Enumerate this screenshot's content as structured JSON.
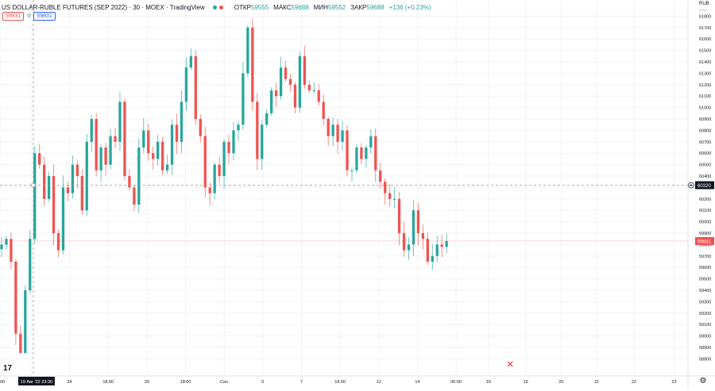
{
  "header": {
    "symbol_line": "US DOLLAR-RUBLE FUTURES (SEP 2022) · 30 · MOEX · TradingView",
    "ohlc": [
      {
        "k": "ОТКР",
        "v": "59555"
      },
      {
        "k": "МАКС",
        "v": "59688"
      },
      {
        "k": "МИН",
        "v": "59552"
      },
      {
        "k": "ЗАКР",
        "v": "59688"
      }
    ],
    "change": "+136 (+0.23%)",
    "badge_left": "59831",
    "badge_zero": "0",
    "badge_right": "59831"
  },
  "axis": {
    "currency": "RUB",
    "currency_sub": "Д/БЫ",
    "crosshair_price": "60320",
    "last_price": "59831",
    "crosshair_time": "19 Авг '22  23:30",
    "close_marker": "✕"
  },
  "colors": {
    "up": "#26a69a",
    "down": "#ef5350",
    "grid": "#f0f3fa",
    "text": "#131722",
    "muted": "#787b86",
    "last_price": "#ef5350",
    "crosshair_label": "#131722"
  },
  "icons": {
    "logo": "tradingview-logo-icon",
    "settings": "gear-icon",
    "close": "close-x-icon",
    "crosshair_add": "plus-circle-icon"
  },
  "chart_data": {
    "type": "candlestick",
    "title": "US DOLLAR-RUBLE FUTURES (SEP 2022)",
    "interval": "30",
    "exchange": "MOEX",
    "currency": "RUB",
    "ylim": [
      58700,
      61900
    ],
    "y_ticks": [
      61800,
      61700,
      61600,
      61500,
      61400,
      61300,
      61200,
      61100,
      61000,
      60900,
      60800,
      60700,
      60600,
      60500,
      60400,
      60300,
      60200,
      60100,
      60000,
      59900,
      59800,
      59700,
      59600,
      59500,
      59400,
      59300,
      59200,
      59100,
      59000,
      58900,
      58800
    ],
    "x_ticks": [
      "00",
      "19 Авг '22",
      "24",
      "18:00",
      "29",
      "18:00",
      "Сен",
      "5",
      "7",
      "18:00",
      "12",
      "14",
      "06:00",
      "16",
      "19",
      "20",
      "21",
      "22",
      "23"
    ],
    "x_tick_positions": [
      0,
      2,
      4.5,
      7,
      9.5,
      12,
      14.5,
      17,
      19.5,
      22,
      24.5,
      27,
      29.5,
      31.6,
      34,
      36.3,
      38.6,
      41,
      43.6
    ],
    "x_max": 44.5,
    "last_bar_index": 29.4,
    "close": [
      59800,
      59850,
      59650,
      59020,
      58850,
      59400,
      59850,
      60600,
      60500,
      60200,
      60400,
      59900,
      59750,
      60300,
      60250,
      60500,
      60400,
      60100,
      60700,
      60900,
      60450,
      60650,
      60500,
      60750,
      60700,
      61050,
      60400,
      60300,
      60150,
      60650,
      60800,
      60600,
      60550,
      60700,
      60450,
      60500,
      60850,
      60700,
      61050,
      61350,
      61450,
      60900,
      60750,
      60300,
      60250,
      60500,
      60400,
      60700,
      60600,
      60800,
      60850,
      61300,
      61700,
      61050,
      60550,
      60850,
      60950,
      61150,
      61100,
      61350,
      61250,
      61200,
      61000,
      61450,
      61200,
      61150,
      61150,
      61050,
      60900,
      60750,
      60850,
      60700,
      60800,
      60450,
      60450,
      60650,
      60550,
      60650,
      60750,
      60450,
      60350,
      60250,
      60200,
      60200,
      59900,
      59750,
      59800,
      60100,
      59900,
      59850,
      59650,
      59700,
      59800,
      59780,
      59831
    ],
    "high_max": 61820,
    "low_min": 58850
  }
}
